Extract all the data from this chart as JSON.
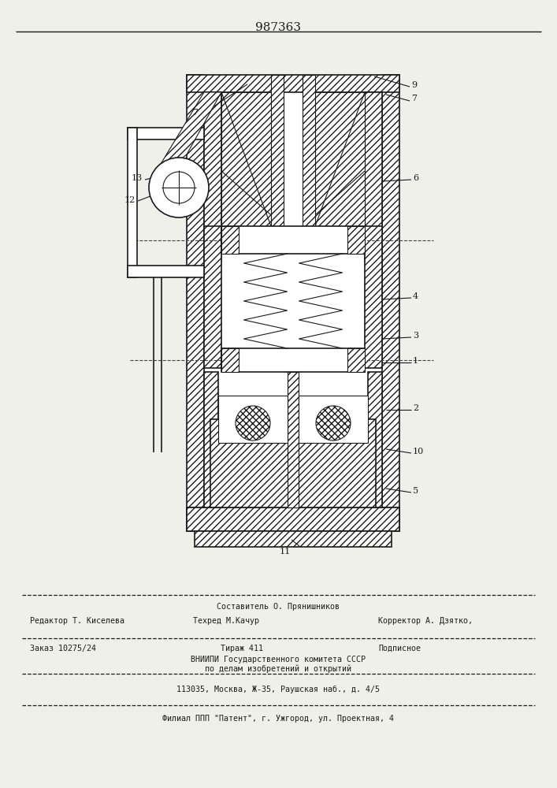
{
  "patent_number": "987363",
  "bg": "#f0f0eb",
  "lc": "#1a1a1a",
  "footer": {
    "l1_top": "Составитель О. Прянишников",
    "l1_left": "Редактор Т. Киселева",
    "l1_mid": "Техред М.Качур",
    "l1_right": "Корректор А. Дзятко,",
    "l2_left": "Заказ 10275/24",
    "l2_mid": "Тираж 411",
    "l2_right": "Подписное",
    "l3": "ВНИИПИ Государственного комитета СССР",
    "l4": "по делам изобретений и открытий",
    "l5": "113035, Москва, Ж-35, Раушская наб., д. 4/5",
    "l6": "Филиал ППП \"Патент\", г. Ужгород, ул. Проектная, 4"
  }
}
